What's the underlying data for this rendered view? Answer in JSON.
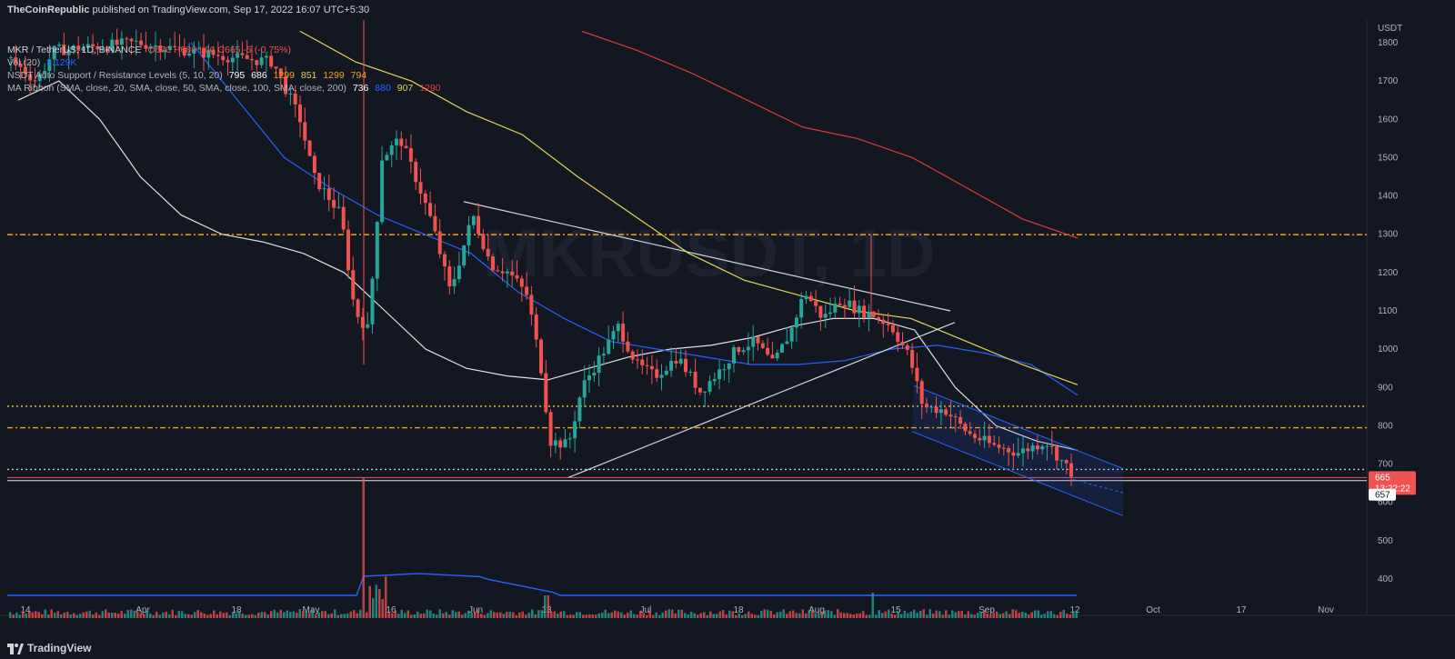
{
  "header": {
    "publisher": "TheCoinRepublic",
    "text": " published on TradingView.com, Sep 17, 2022 16:07 UTC+5:30"
  },
  "legend": {
    "symbol": "MKR / TetherUS, 1D, BINANCE",
    "ohlc": "O670 H680 L66 C665 -5 (-0.75%)",
    "vol_label": "Vol (20)",
    "vol_values": [
      "3.129K"
    ],
    "nsdt_label": "NSDT Auto Support / Resistance Levels (5, 10, 20)",
    "nsdt_values": [
      "795",
      "686",
      "1299",
      "851",
      "1299",
      "794"
    ],
    "ma_label": "MA Ribbon (SMA, close, 20, SMA, close, 50, SMA, close, 100, SMA, close, 200)",
    "ma_values": [
      "736",
      "880",
      "907",
      "1290"
    ]
  },
  "watermark": "MKRUSDT, 1D",
  "price_axis": {
    "currency": "USDT",
    "current_price": "665",
    "countdown": "13:22:22",
    "low_marker": "657"
  },
  "bottom_bar": {
    "brand": "TradingView"
  },
  "colors": {
    "bull": "#26a69a",
    "bear": "#ef5350",
    "ma20": "#e0e0e0",
    "ma50": "#2962ff",
    "ma100": "#e5d45a",
    "ma200": "#e03a3a",
    "level": "#f7a21b"
  },
  "chart_data": {
    "type": "line",
    "title": "MKR / TetherUS, 1D, BINANCE",
    "ylabel": "USDT",
    "y_ticks": [
      400,
      500,
      600,
      700,
      800,
      900,
      1000,
      1100,
      1200,
      1300,
      1400,
      1500,
      1600,
      1700,
      1800
    ],
    "ylim": [
      350,
      1830
    ],
    "x_ticks": [
      "14",
      "Apr",
      "18",
      "May",
      "16",
      "Jun",
      "13",
      "Jul",
      "18",
      "Aug",
      "15",
      "Sep",
      "12",
      "Oct",
      "17",
      "Nov"
    ],
    "grid": false,
    "horizontal_levels": [
      {
        "price": 1299,
        "style": "dash-dot"
      },
      {
        "price": 851,
        "style": "dotted"
      },
      {
        "price": 795,
        "style": "dash-dot"
      },
      {
        "price": 686,
        "style": "dotted"
      },
      {
        "price": 665,
        "style": "solid"
      },
      {
        "price": 657,
        "style": "solid"
      }
    ],
    "series": [
      {
        "name": "MA 20",
        "values": [
          1650,
          1700,
          1600,
          1450,
          1350,
          1300,
          1280,
          1250,
          1200,
          1100,
          1000,
          950,
          930,
          920,
          950,
          980,
          1000,
          1010,
          1030,
          1060,
          1080,
          1080,
          1050,
          900,
          800,
          760,
          736
        ]
      },
      {
        "name": "MA 50",
        "values": [
          1800,
          1650,
          1500,
          1420,
          1350,
          1300,
          1250,
          1150,
          1080,
          1020,
          1000,
          980,
          960,
          960,
          970,
          1000,
          1010,
          990,
          960,
          880
        ]
      },
      {
        "name": "MA 100",
        "values": [
          1830,
          1750,
          1700,
          1620,
          1560,
          1450,
          1350,
          1250,
          1180,
          1140,
          1100,
          1080,
          1020,
          960,
          907
        ]
      },
      {
        "name": "MA 200",
        "values": [
          1830,
          1780,
          1720,
          1650,
          1580,
          1550,
          1500,
          1420,
          1340,
          1290
        ]
      }
    ]
  }
}
